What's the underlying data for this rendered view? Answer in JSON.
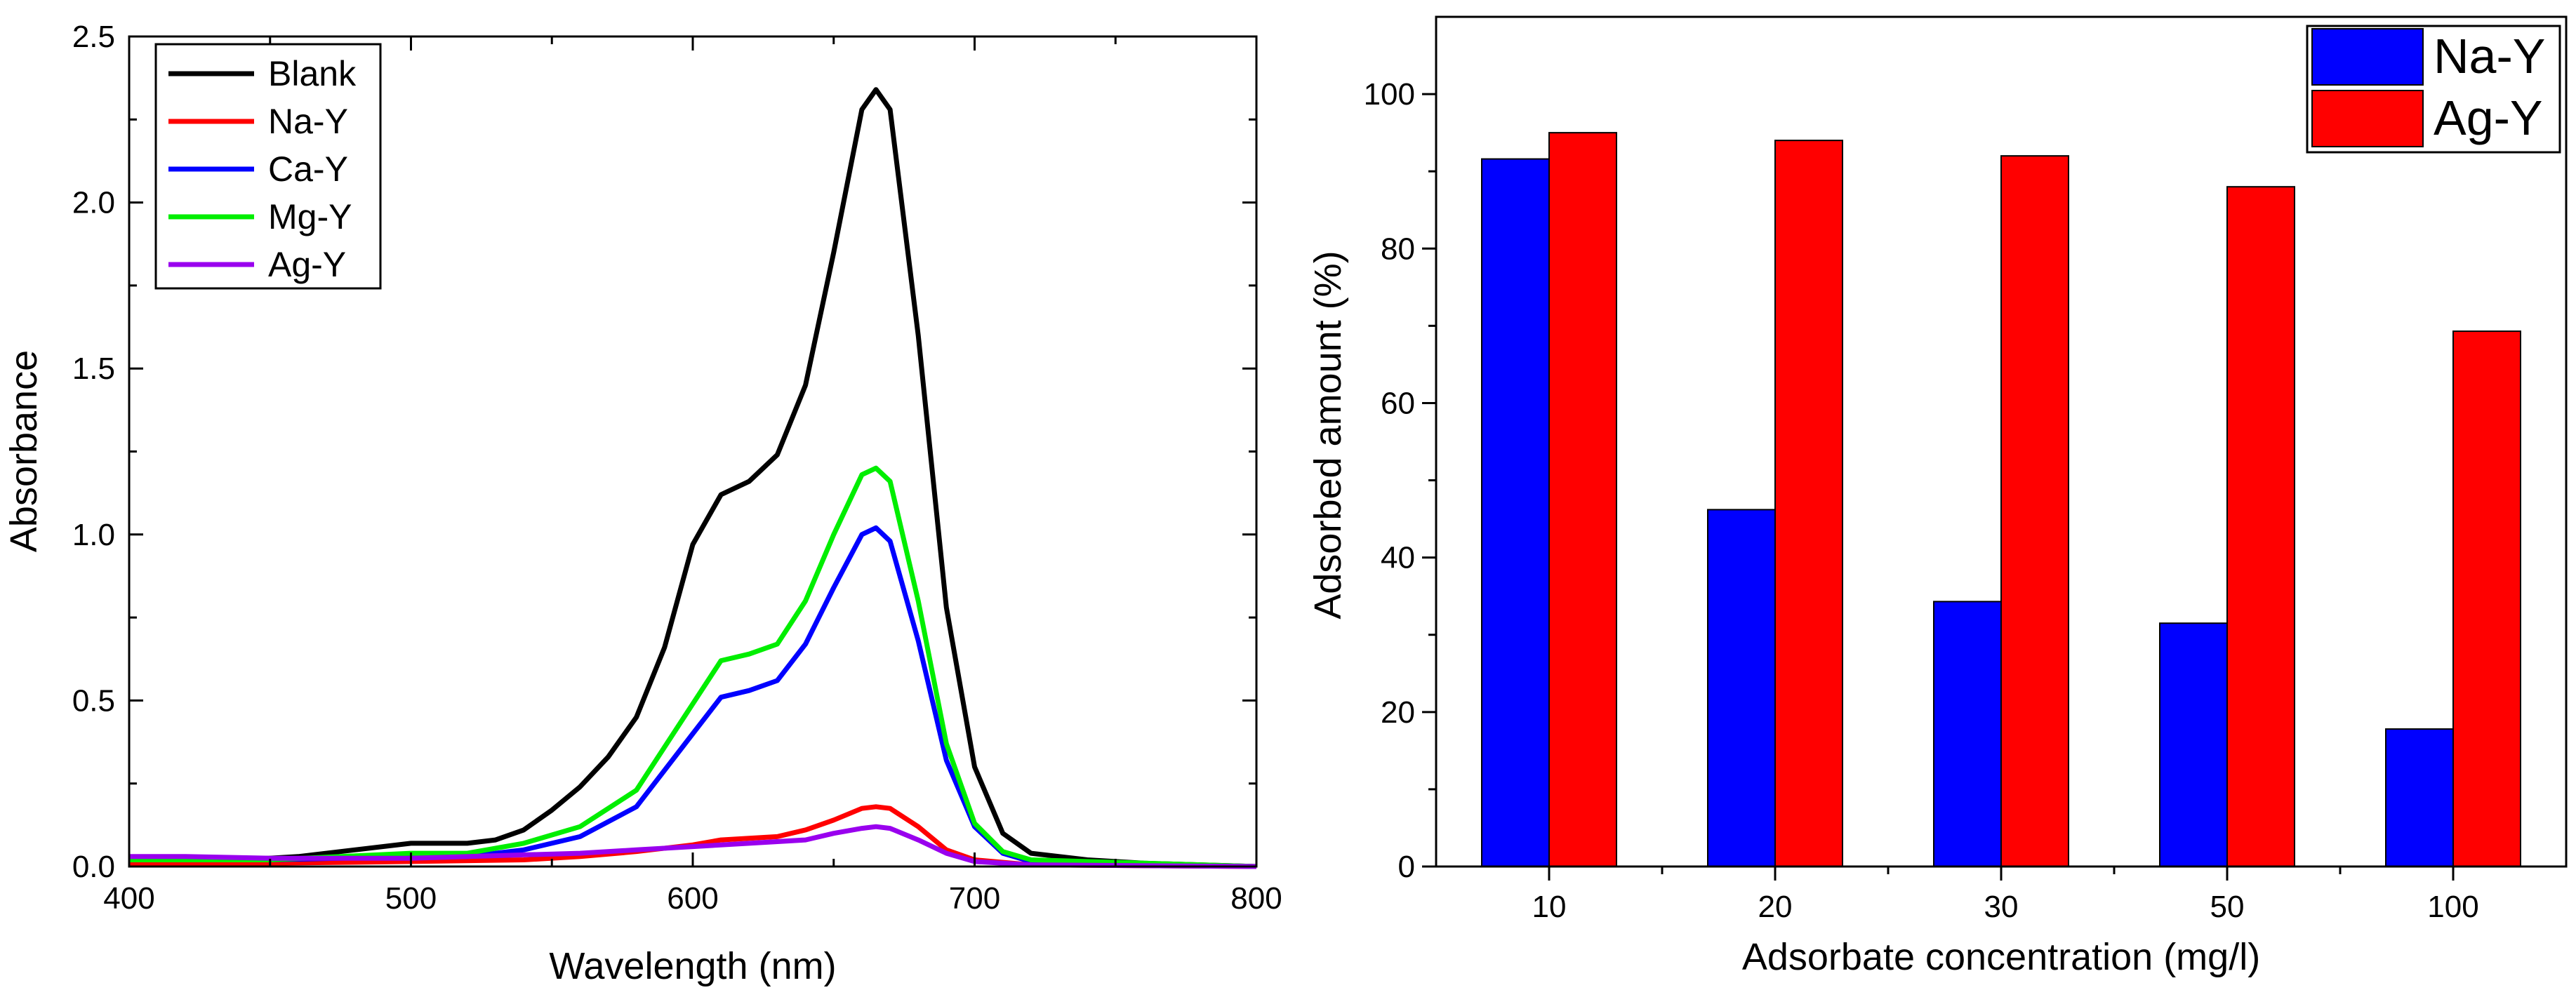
{
  "chart_data": [
    {
      "type": "line",
      "xlabel": "Wavelength (nm)",
      "ylabel": "Absorbance",
      "xlim": [
        400,
        800
      ],
      "ylim": [
        0,
        2.5
      ],
      "xticks": [
        400,
        500,
        600,
        700,
        800
      ],
      "yticks": [
        0.0,
        0.5,
        1.0,
        1.5,
        2.0,
        2.5
      ],
      "xtick_labels": [
        "400",
        "500",
        "600",
        "700",
        "800"
      ],
      "ytick_labels": [
        "0.0",
        "0.5",
        "1.0",
        "1.5",
        "2.0",
        "2.5"
      ],
      "legend_position": "top-left",
      "series": [
        {
          "name": "Blank",
          "color": "#000000",
          "points": [
            [
              400,
              0.02
            ],
            [
              420,
              0.02
            ],
            [
              440,
              0.02
            ],
            [
              460,
              0.03
            ],
            [
              480,
              0.05
            ],
            [
              500,
              0.07
            ],
            [
              520,
              0.07
            ],
            [
              530,
              0.08
            ],
            [
              540,
              0.11
            ],
            [
              550,
              0.17
            ],
            [
              560,
              0.24
            ],
            [
              570,
              0.33
            ],
            [
              580,
              0.45
            ],
            [
              590,
              0.66
            ],
            [
              600,
              0.97
            ],
            [
              610,
              1.12
            ],
            [
              620,
              1.16
            ],
            [
              630,
              1.24
            ],
            [
              640,
              1.45
            ],
            [
              650,
              1.85
            ],
            [
              660,
              2.28
            ],
            [
              665,
              2.34
            ],
            [
              670,
              2.28
            ],
            [
              680,
              1.6
            ],
            [
              690,
              0.78
            ],
            [
              700,
              0.3
            ],
            [
              710,
              0.1
            ],
            [
              720,
              0.04
            ],
            [
              740,
              0.02
            ],
            [
              760,
              0.01
            ],
            [
              800,
              0.0
            ]
          ]
        },
        {
          "name": "Na-Y",
          "color": "#ff0000",
          "points": [
            [
              400,
              0.01
            ],
            [
              450,
              0.01
            ],
            [
              500,
              0.015
            ],
            [
              540,
              0.02
            ],
            [
              560,
              0.03
            ],
            [
              580,
              0.045
            ],
            [
              600,
              0.065
            ],
            [
              610,
              0.08
            ],
            [
              620,
              0.085
            ],
            [
              630,
              0.09
            ],
            [
              640,
              0.11
            ],
            [
              650,
              0.14
            ],
            [
              660,
              0.175
            ],
            [
              665,
              0.18
            ],
            [
              670,
              0.175
            ],
            [
              680,
              0.12
            ],
            [
              690,
              0.05
            ],
            [
              700,
              0.02
            ],
            [
              720,
              0.005
            ],
            [
              800,
              0.0
            ]
          ]
        },
        {
          "name": "Ca-Y",
          "color": "#0000ff",
          "points": [
            [
              400,
              0.02
            ],
            [
              450,
              0.02
            ],
            [
              500,
              0.03
            ],
            [
              520,
              0.03
            ],
            [
              540,
              0.05
            ],
            [
              560,
              0.09
            ],
            [
              580,
              0.18
            ],
            [
              600,
              0.4
            ],
            [
              610,
              0.51
            ],
            [
              620,
              0.53
            ],
            [
              630,
              0.56
            ],
            [
              640,
              0.67
            ],
            [
              650,
              0.84
            ],
            [
              660,
              1.0
            ],
            [
              665,
              1.02
            ],
            [
              670,
              0.98
            ],
            [
              680,
              0.68
            ],
            [
              690,
              0.32
            ],
            [
              700,
              0.12
            ],
            [
              710,
              0.04
            ],
            [
              720,
              0.015
            ],
            [
              800,
              0.0
            ]
          ]
        },
        {
          "name": "Mg-Y",
          "color": "#00ee00",
          "points": [
            [
              400,
              0.02
            ],
            [
              450,
              0.02
            ],
            [
              500,
              0.04
            ],
            [
              520,
              0.04
            ],
            [
              540,
              0.07
            ],
            [
              560,
              0.12
            ],
            [
              580,
              0.23
            ],
            [
              600,
              0.49
            ],
            [
              610,
              0.62
            ],
            [
              620,
              0.64
            ],
            [
              630,
              0.67
            ],
            [
              640,
              0.8
            ],
            [
              650,
              1.0
            ],
            [
              660,
              1.18
            ],
            [
              665,
              1.2
            ],
            [
              670,
              1.16
            ],
            [
              680,
              0.8
            ],
            [
              690,
              0.37
            ],
            [
              700,
              0.13
            ],
            [
              710,
              0.045
            ],
            [
              720,
              0.02
            ],
            [
              800,
              0.0
            ]
          ]
        },
        {
          "name": "Ag-Y",
          "color": "#9900ee",
          "points": [
            [
              400,
              0.03
            ],
            [
              420,
              0.03
            ],
            [
              450,
              0.025
            ],
            [
              480,
              0.025
            ],
            [
              500,
              0.025
            ],
            [
              540,
              0.035
            ],
            [
              560,
              0.04
            ],
            [
              580,
              0.05
            ],
            [
              600,
              0.06
            ],
            [
              620,
              0.07
            ],
            [
              640,
              0.08
            ],
            [
              650,
              0.1
            ],
            [
              660,
              0.115
            ],
            [
              665,
              0.12
            ],
            [
              670,
              0.115
            ],
            [
              680,
              0.08
            ],
            [
              690,
              0.04
            ],
            [
              700,
              0.015
            ],
            [
              720,
              0.005
            ],
            [
              800,
              0.0
            ]
          ]
        }
      ]
    },
    {
      "type": "bar",
      "xlabel": "Adsorbate concentration (mg/l)",
      "ylabel": "Adsorbed amount (%)",
      "ylim": [
        0,
        110
      ],
      "yticks": [
        0,
        20,
        40,
        60,
        80,
        100
      ],
      "ytick_labels": [
        "0",
        "20",
        "40",
        "60",
        "80",
        "100"
      ],
      "categories": [
        "10",
        "20",
        "30",
        "50",
        "100"
      ],
      "legend_position": "top-right",
      "series": [
        {
          "name": "Na-Y",
          "color": "#0000ff",
          "values": [
            91.6,
            46.2,
            34.3,
            31.5,
            17.8
          ]
        },
        {
          "name": "Ag-Y",
          "color": "#ff0000",
          "values": [
            95.0,
            94.0,
            92.0,
            88.0,
            69.3
          ]
        }
      ]
    }
  ]
}
